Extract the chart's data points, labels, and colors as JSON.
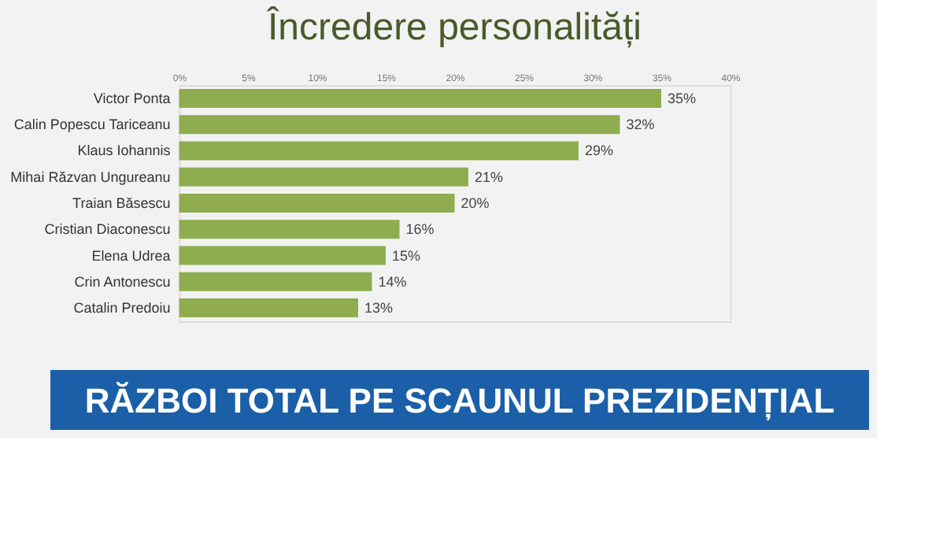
{
  "chart_data": {
    "type": "bar",
    "orientation": "horizontal",
    "title": "Încredere personalități",
    "categories": [
      "Victor Ponta",
      "Calin Popescu Tariceanu",
      "Klaus Iohannis",
      "Mihai Răzvan Ungureanu",
      "Traian Băsescu",
      "Cristian Diaconescu",
      "Elena Udrea",
      "Crin Antonescu",
      "Catalin Predoiu"
    ],
    "values": [
      35,
      32,
      29,
      21,
      20,
      16,
      15,
      14,
      13
    ],
    "value_labels": [
      "35%",
      "32%",
      "29%",
      "21%",
      "20%",
      "16%",
      "15%",
      "14%",
      "13%"
    ],
    "color": "#8fad4f",
    "xlim": [
      0,
      40
    ],
    "xticks": [
      {
        "value": 0,
        "label": "0%"
      },
      {
        "value": 5,
        "label": "5%"
      },
      {
        "value": 10,
        "label": "10%"
      },
      {
        "value": 15,
        "label": "15%"
      },
      {
        "value": 20,
        "label": "20%"
      },
      {
        "value": 25,
        "label": "25%"
      },
      {
        "value": 30,
        "label": "30%"
      },
      {
        "value": 35,
        "label": "35%"
      },
      {
        "value": 40,
        "label": "40%"
      }
    ],
    "grid": false,
    "annotations": [
      "RĂZBOI TOTAL PE SCAUNUL PREZIDENȚIAL"
    ]
  }
}
